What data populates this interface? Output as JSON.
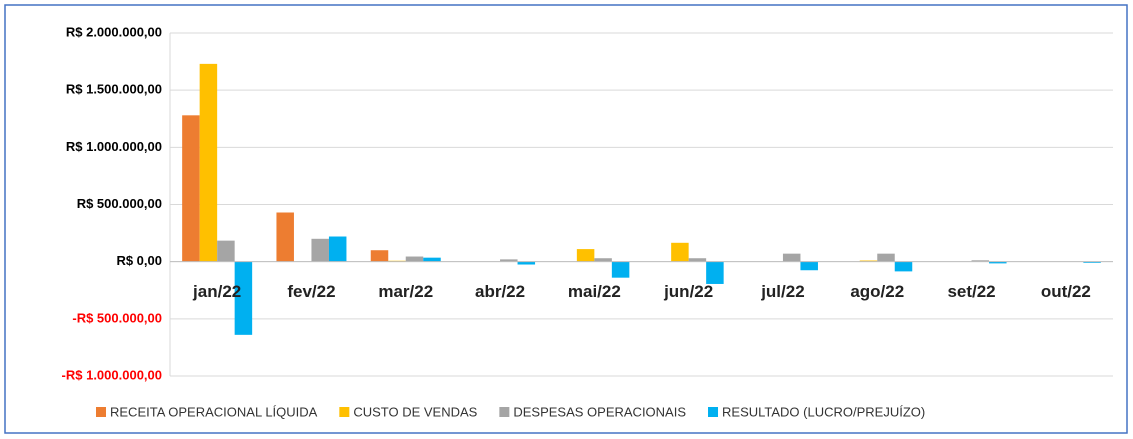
{
  "chart_data": {
    "type": "bar",
    "categories": [
      "jan/22",
      "fev/22",
      "mar/22",
      "abr/22",
      "mai/22",
      "jun/22",
      "jul/22",
      "ago/22",
      "set/22",
      "out/22"
    ],
    "series": [
      {
        "name": "RECEITA OPERACIONAL LÍQUIDA",
        "color": "#ED7D31",
        "values": [
          1280000,
          430000,
          100000,
          0,
          0,
          0,
          0,
          0,
          0,
          0
        ]
      },
      {
        "name": "CUSTO DE VENDAS",
        "color": "#FFC000",
        "values": [
          1730000,
          0,
          8000,
          0,
          110000,
          165000,
          0,
          10000,
          0,
          0
        ]
      },
      {
        "name": "DESPESAS OPERACIONAIS",
        "color": "#A5A5A5",
        "values": [
          184000,
          200000,
          45000,
          20000,
          30000,
          30000,
          70000,
          70000,
          12000,
          0
        ]
      },
      {
        "name": "RESULTADO (LUCRO/PREJUÍZO)",
        "color": "#00B0F0",
        "values": [
          -640000,
          220000,
          35000,
          -25000,
          -140000,
          -195000,
          -75000,
          -85000,
          -15000,
          -10000
        ]
      }
    ],
    "ylim": [
      -1000000,
      2000000
    ],
    "yticks": [
      {
        "value": -1000000,
        "label": "-R$ 1.000.000,00"
      },
      {
        "value": -500000,
        "label": "-R$ 500.000,00"
      },
      {
        "value": 0,
        "label": "R$ 0,00"
      },
      {
        "value": 500000,
        "label": "R$ 500.000,00"
      },
      {
        "value": 1000000,
        "label": "R$ 1.000.000,00"
      },
      {
        "value": 1500000,
        "label": "R$ 1.500.000,00"
      },
      {
        "value": 2000000,
        "label": "R$ 2.000.000,00"
      }
    ],
    "negative_tick_color": "#FF0000",
    "grid": true,
    "legend": "bottom"
  }
}
